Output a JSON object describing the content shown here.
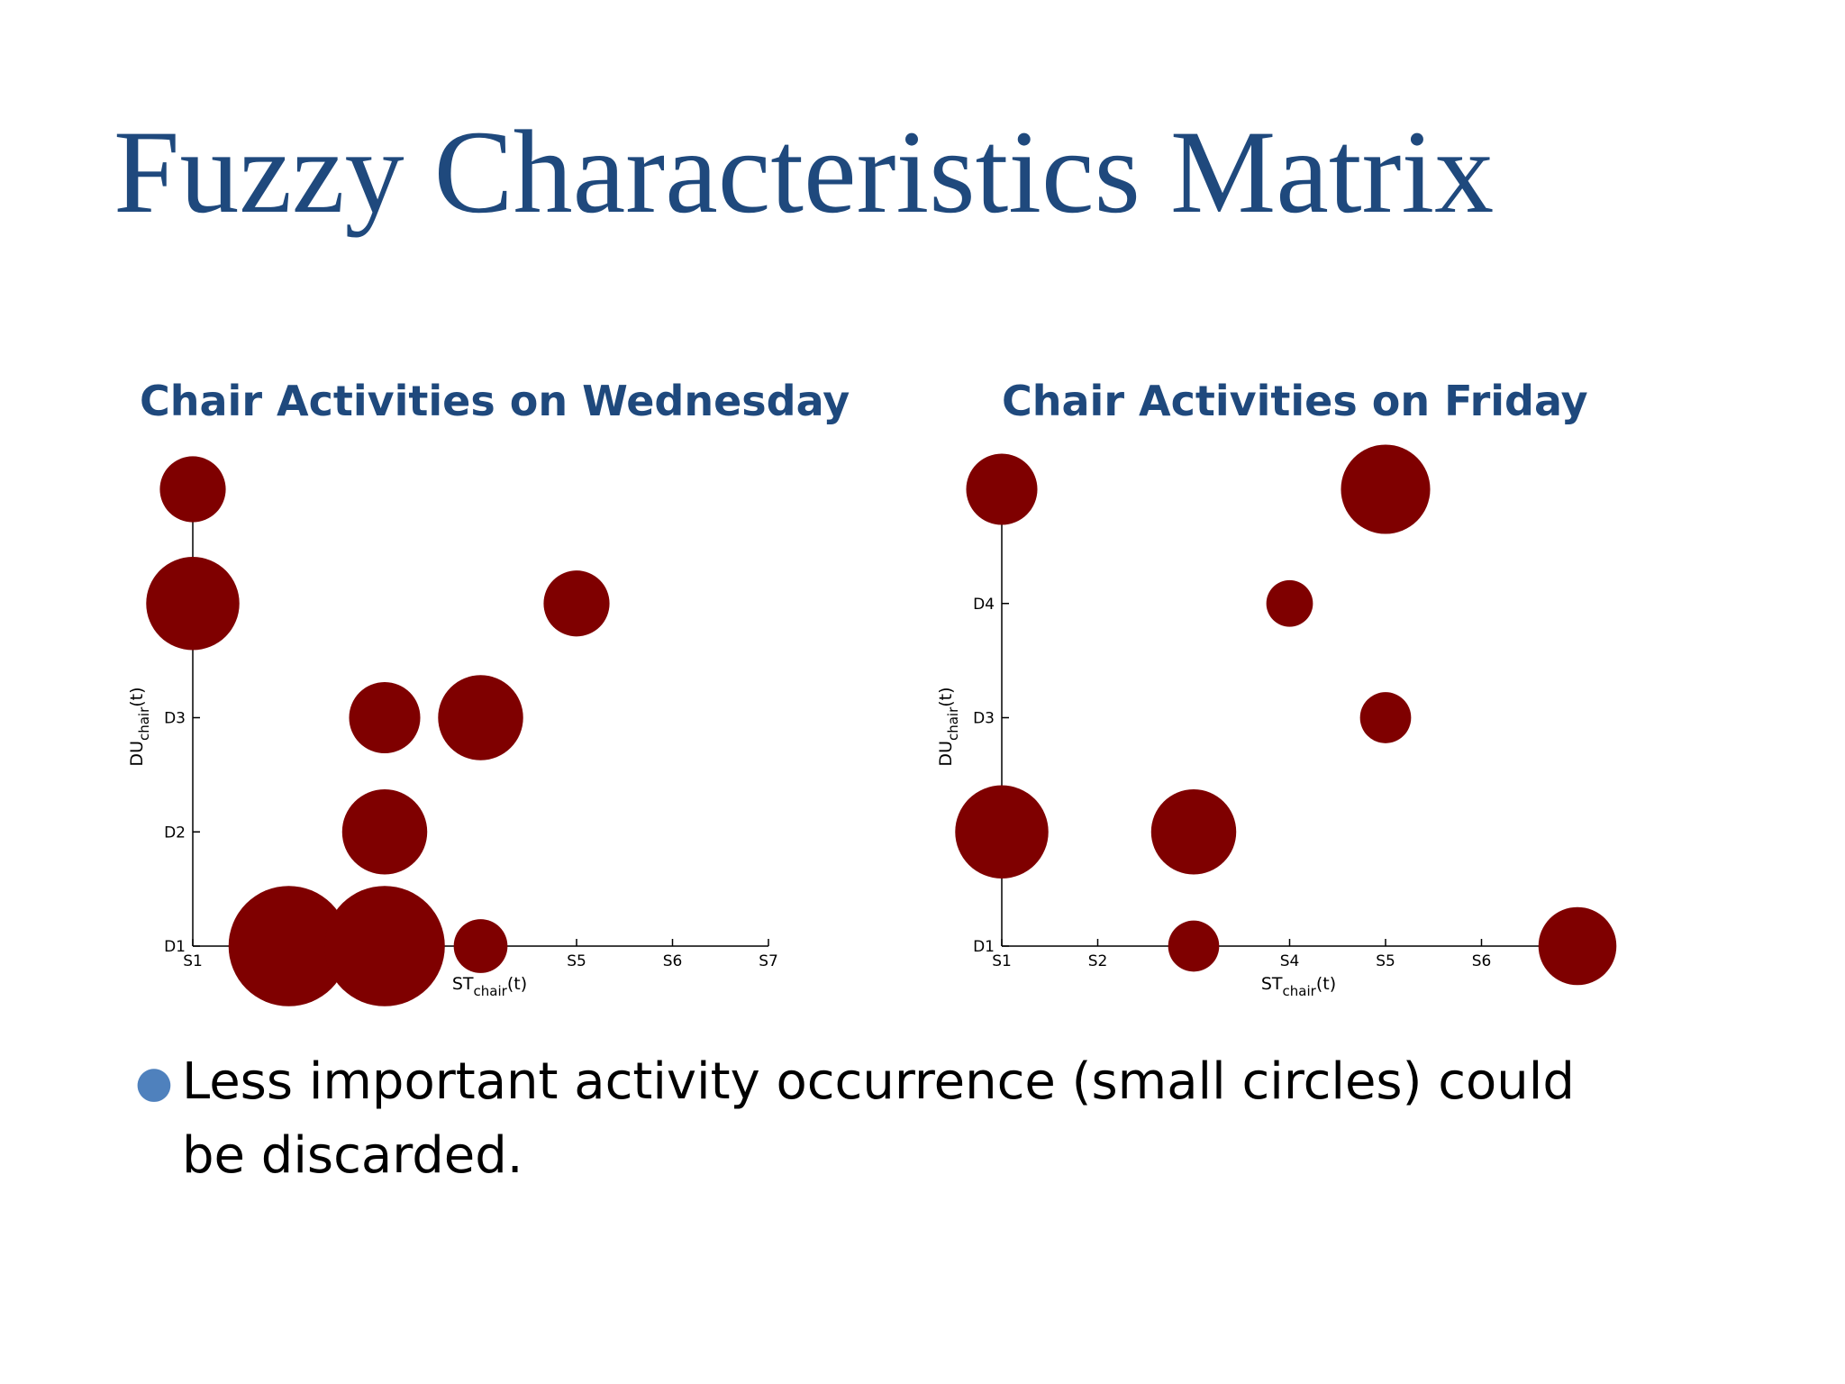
{
  "slide": {
    "title": "Fuzzy Characteristics Matrix",
    "bullets": [
      "Less important activity occurrence (small circles) could be discarded."
    ]
  },
  "colors": {
    "title": "#1f497d",
    "bubble": "#7f0000",
    "bullet": "#4f81bd",
    "axis": "#000000"
  },
  "icons": {
    "bullet": "bullet-dot-icon"
  },
  "chart_data": [
    {
      "type": "scatter",
      "title": "Chair Activities on Wednesday",
      "xlabel_base": "ST",
      "xlabel_sub": "chair",
      "xlabel_tail": "(t)",
      "ylabel_base": "DU",
      "ylabel_sub": "chair",
      "ylabel_tail": "(t)",
      "xlim": [
        1,
        7
      ],
      "ylim": [
        1,
        5
      ],
      "x_ticks": [
        1,
        2,
        3,
        4,
        5,
        6,
        7
      ],
      "x_tick_labels": [
        "S1",
        "",
        "",
        "",
        "S5",
        "S6",
        "S7"
      ],
      "y_ticks": [
        1,
        2,
        3,
        4,
        5
      ],
      "y_tick_labels": [
        "D1",
        "D2",
        "D3",
        "",
        ""
      ],
      "grid": false,
      "points": [
        {
          "x": 1,
          "y": 5,
          "size": 3
        },
        {
          "x": 1,
          "y": 4,
          "size": 6
        },
        {
          "x": 5,
          "y": 4,
          "size": 3
        },
        {
          "x": 3,
          "y": 3,
          "size": 3.5
        },
        {
          "x": 4,
          "y": 3,
          "size": 5
        },
        {
          "x": 3,
          "y": 2,
          "size": 5
        },
        {
          "x": 2,
          "y": 1,
          "size": 10
        },
        {
          "x": 3,
          "y": 1,
          "size": 10
        },
        {
          "x": 4,
          "y": 1,
          "size": 2
        }
      ]
    },
    {
      "type": "scatter",
      "title": "Chair Activities on Friday",
      "xlabel_base": "ST",
      "xlabel_sub": "chair",
      "xlabel_tail": "(t)",
      "ylabel_base": "DU",
      "ylabel_sub": "chair",
      "ylabel_tail": "(t)",
      "xlim": [
        1,
        7
      ],
      "ylim": [
        1,
        5
      ],
      "x_ticks": [
        1,
        2,
        3,
        4,
        5,
        6,
        7
      ],
      "x_tick_labels": [
        "S1",
        "S2",
        "",
        "S4",
        "S5",
        "S6",
        ""
      ],
      "y_ticks": [
        1,
        2,
        3,
        4,
        5
      ],
      "y_tick_labels": [
        "D1",
        "",
        "D3",
        "D4",
        ""
      ],
      "grid": false,
      "points": [
        {
          "x": 1,
          "y": 5,
          "size": 3.5
        },
        {
          "x": 5,
          "y": 5,
          "size": 5.5
        },
        {
          "x": 4,
          "y": 4,
          "size": 1.5
        },
        {
          "x": 5,
          "y": 3,
          "size": 1.8
        },
        {
          "x": 1,
          "y": 2,
          "size": 6
        },
        {
          "x": 3,
          "y": 2,
          "size": 5
        },
        {
          "x": 3,
          "y": 1,
          "size": 1.8
        },
        {
          "x": 7,
          "y": 1,
          "size": 4.2
        }
      ]
    }
  ]
}
